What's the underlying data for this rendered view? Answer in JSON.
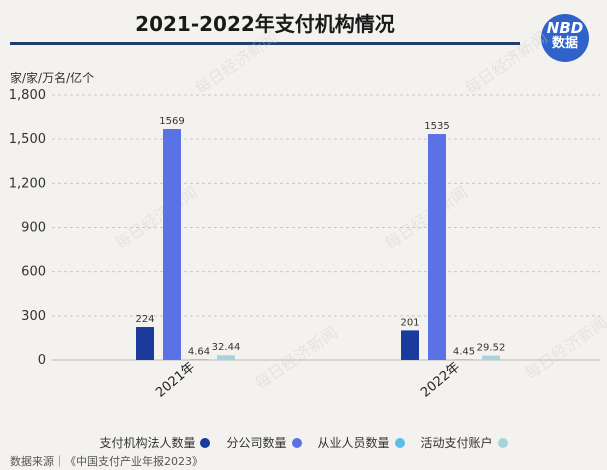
{
  "header": {
    "title": "2021-2022年支付机构情况"
  },
  "logo": {
    "line1": "NBD",
    "line2": "数据"
  },
  "watermark": "每日经济新闻",
  "footer": {
    "source": "数据来源｜《中国支付产业年报2023》"
  },
  "chart_data": {
    "type": "bar",
    "title": "2021-2022年支付机构情况",
    "ylabel": "家/家/万名/亿个",
    "xlabel": "",
    "ylim": [
      0,
      1800
    ],
    "yticks": [
      0,
      300,
      600,
      900,
      1200,
      1500,
      1800
    ],
    "ytick_labels": [
      "0",
      "300",
      "600",
      "900",
      "1,200",
      "1,500",
      "1,800"
    ],
    "grid": true,
    "legend_position": "bottom",
    "categories": [
      "2021年",
      "2022年"
    ],
    "series": [
      {
        "name": "支付机构法人数量",
        "color": "#1a3a9c",
        "values": [
          224,
          201
        ],
        "labels": [
          "224",
          "201"
        ]
      },
      {
        "name": "分公司数量",
        "color": "#5a72e6",
        "values": [
          1569,
          1535
        ],
        "labels": [
          "1569",
          "1535"
        ]
      },
      {
        "name": "从业人员数量",
        "color": "#5bbde8",
        "values": [
          4.64,
          4.45
        ],
        "labels": [
          "4.64",
          "4.45"
        ]
      },
      {
        "name": "活动支付账户",
        "color": "#a6d3dc",
        "values": [
          32.44,
          29.52
        ],
        "labels": [
          "32.44",
          "29.52"
        ]
      }
    ]
  }
}
